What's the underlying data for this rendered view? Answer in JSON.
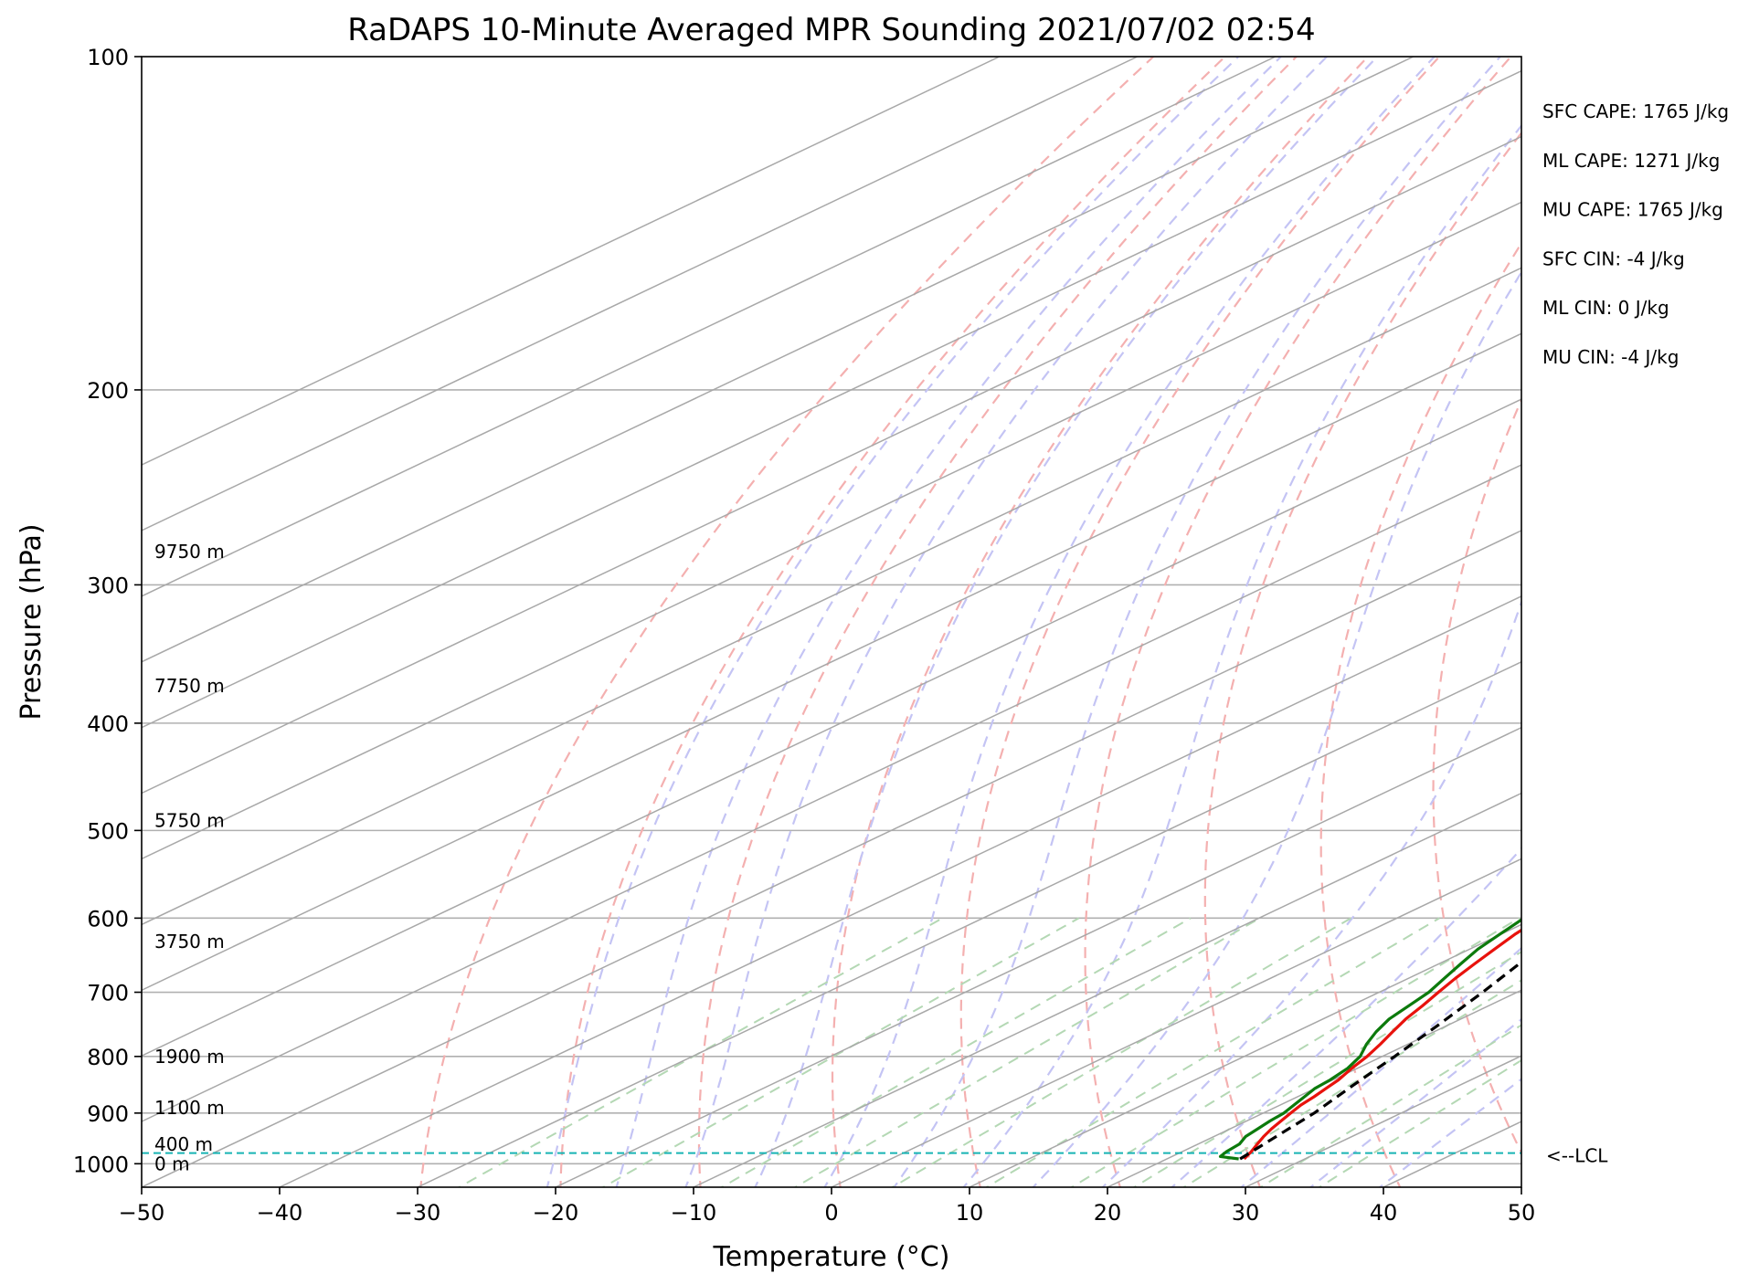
{
  "chart_data": {
    "type": "line",
    "subtype": "skew-T log-P sounding",
    "title": "RaDAPS 10-Minute Averaged MPR Sounding 2021/07/02 02:54",
    "xlabel": "Temperature (°C)",
    "ylabel": "Pressure (hPa)",
    "xlim": [
      -50,
      50
    ],
    "ylim": [
      1050,
      100
    ],
    "y_scale": "log",
    "grid": true,
    "x_ticks": [
      -50,
      -40,
      -30,
      -20,
      -10,
      0,
      10,
      20,
      30,
      40,
      50
    ],
    "x_tick_labels": [
      "−50",
      "−40",
      "−30",
      "−20",
      "−10",
      "0",
      "10",
      "20",
      "30",
      "40",
      "50"
    ],
    "y_ticks": [
      1000,
      900,
      800,
      700,
      600,
      500,
      400,
      300,
      200,
      100
    ],
    "y_tick_labels": [
      "1000",
      "900",
      "800",
      "700",
      "600",
      "500",
      "400",
      "300",
      "200",
      "100"
    ],
    "height_labels": [
      {
        "pressure": 1000,
        "text": "0 m"
      },
      {
        "pressure": 960,
        "text": "400 m"
      },
      {
        "pressure": 890,
        "text": "1100 m"
      },
      {
        "pressure": 800,
        "text": "1900 m"
      },
      {
        "pressure": 630,
        "text": "3750 m"
      },
      {
        "pressure": 490,
        "text": "5750 m"
      },
      {
        "pressure": 370,
        "text": "7750 m"
      },
      {
        "pressure": 280,
        "text": "9750 m"
      }
    ],
    "lcl": {
      "pressure": 978,
      "label": "<--LCL"
    },
    "indices": [
      "SFC CAPE: 1765 J/kg",
      "ML CAPE: 1271 J/kg",
      "MU CAPE: 1765 J/kg",
      "SFC CIN: -4 J/kg",
      "ML CIN: 0 J/kg",
      "MU CIN: -4 J/kg"
    ],
    "series": [
      {
        "role": "temperature",
        "color": "#e8120c",
        "points": [
          [
            25.6,
            990
          ],
          [
            25,
            975
          ],
          [
            24.3,
            960
          ],
          [
            23.6,
            945
          ],
          [
            23,
            930
          ],
          [
            22.5,
            915
          ],
          [
            22,
            900
          ],
          [
            21.5,
            885
          ],
          [
            21.2,
            870
          ],
          [
            20.8,
            855
          ],
          [
            20.4,
            840
          ],
          [
            19.6,
            820
          ],
          [
            18.9,
            800
          ],
          [
            18,
            780
          ],
          [
            17,
            760
          ],
          [
            16,
            740
          ],
          [
            15.2,
            720
          ],
          [
            14.3,
            700
          ],
          [
            13.4,
            680
          ],
          [
            12.6,
            660
          ],
          [
            11.8,
            640
          ],
          [
            11,
            620
          ],
          [
            10.4,
            600
          ],
          [
            9.7,
            580
          ],
          [
            9.3,
            560
          ],
          [
            8.7,
            540
          ],
          [
            8.2,
            520
          ],
          [
            7.6,
            500
          ],
          [
            7,
            485
          ],
          [
            6.2,
            470
          ],
          [
            5.4,
            455
          ],
          [
            4.6,
            440
          ],
          [
            3.8,
            425
          ],
          [
            2.8,
            410
          ],
          [
            2.0,
            395
          ],
          [
            1.2,
            380
          ],
          [
            0,
            365
          ],
          [
            -1.4,
            350
          ],
          [
            -2.8,
            335
          ],
          [
            -4.2,
            320
          ],
          [
            -5.8,
            305
          ],
          [
            -7.6,
            290
          ],
          [
            -9.6,
            275
          ],
          [
            -11.5,
            262
          ]
        ]
      },
      {
        "role": "dewpoint",
        "color": "#0c7a0c",
        "points": [
          [
            25.2,
            990
          ],
          [
            23.5,
            985
          ],
          [
            23.2,
            975
          ],
          [
            23,
            960
          ],
          [
            22.3,
            945
          ],
          [
            22,
            930
          ],
          [
            21.7,
            915
          ],
          [
            21.5,
            900
          ],
          [
            21,
            885
          ],
          [
            20.5,
            870
          ],
          [
            20,
            855
          ],
          [
            19.8,
            840
          ],
          [
            19.3,
            820
          ],
          [
            18.4,
            800
          ],
          [
            17,
            780
          ],
          [
            15.8,
            760
          ],
          [
            14.8,
            740
          ],
          [
            14.2,
            720
          ],
          [
            13.6,
            700
          ],
          [
            12.6,
            680
          ],
          [
            11.6,
            660
          ],
          [
            10.6,
            640
          ],
          [
            9.9,
            620
          ],
          [
            9.2,
            600
          ],
          [
            8.6,
            580
          ],
          [
            8.2,
            560
          ],
          [
            7.6,
            540
          ],
          [
            7.1,
            520
          ],
          [
            6.3,
            500
          ],
          [
            5.3,
            480
          ],
          [
            4.0,
            465
          ],
          [
            2.6,
            450
          ],
          [
            1.2,
            435
          ],
          [
            -0.4,
            420
          ],
          [
            -2.2,
            405
          ],
          [
            -3.8,
            390
          ],
          [
            -5.4,
            375
          ],
          [
            -6.8,
            360
          ],
          [
            -8.0,
            345
          ],
          [
            -9.2,
            330
          ],
          [
            -10.8,
            315
          ],
          [
            -12.2,
            300
          ],
          [
            -13.2,
            290
          ],
          [
            -14.5,
            280
          ],
          [
            -16.2,
            270
          ],
          [
            -17.8,
            262
          ]
        ]
      },
      {
        "role": "parcel",
        "color": "#000000",
        "dashed": true,
        "points": [
          [
            25.3,
            990
          ],
          [
            24.6,
            950
          ],
          [
            23.7,
            900
          ],
          [
            22.3,
            850
          ],
          [
            20.9,
            800
          ],
          [
            19.3,
            750
          ],
          [
            17.5,
            700
          ],
          [
            15.4,
            650
          ],
          [
            13.1,
            600
          ],
          [
            10.5,
            550
          ],
          [
            7.6,
            500
          ],
          [
            4.3,
            450
          ],
          [
            0.5,
            400
          ],
          [
            -1.6,
            375
          ],
          [
            -4,
            350
          ],
          [
            -6.7,
            325
          ],
          [
            -9.9,
            300
          ],
          [
            -12.1,
            285
          ],
          [
            -13.8,
            272
          ],
          [
            -15,
            263
          ]
        ]
      }
    ]
  }
}
